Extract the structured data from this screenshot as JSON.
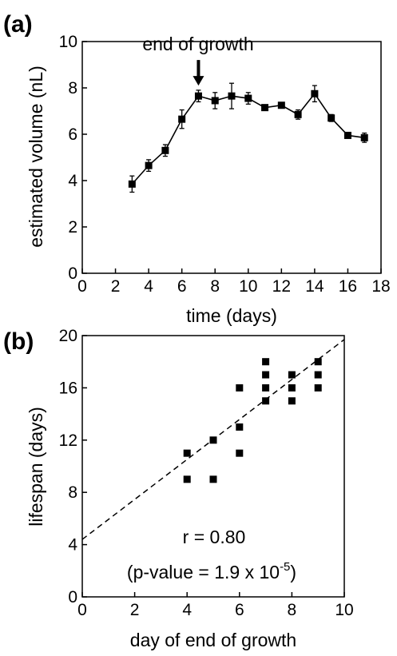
{
  "chart_data": [
    {
      "type": "line",
      "panel_label": "(a)",
      "xlabel": "time (days)",
      "ylabel": "estimated volume (nL)",
      "xlim": [
        0,
        18
      ],
      "ylim": [
        0,
        10
      ],
      "xticks": [
        "0",
        "2",
        "4",
        "6",
        "8",
        "10",
        "12",
        "14",
        "16",
        "18"
      ],
      "yticks": [
        "0",
        "2",
        "4",
        "6",
        "8",
        "10"
      ],
      "annotation": {
        "text": "end of growth",
        "x": 7
      },
      "points": [
        {
          "x": 3,
          "y": 3.85,
          "err": 0.35
        },
        {
          "x": 4,
          "y": 4.65,
          "err": 0.25
        },
        {
          "x": 5,
          "y": 5.3,
          "err": 0.25
        },
        {
          "x": 6,
          "y": 6.65,
          "err": 0.4
        },
        {
          "x": 7,
          "y": 7.65,
          "err": 0.25
        },
        {
          "x": 8,
          "y": 7.45,
          "err": 0.35
        },
        {
          "x": 9,
          "y": 7.65,
          "err": 0.55
        },
        {
          "x": 10,
          "y": 7.55,
          "err": 0.25
        },
        {
          "x": 11,
          "y": 7.15,
          "err": 0.1
        },
        {
          "x": 12,
          "y": 7.25,
          "err": 0.1
        },
        {
          "x": 13,
          "y": 6.85,
          "err": 0.2
        },
        {
          "x": 14,
          "y": 7.75,
          "err": 0.35
        },
        {
          "x": 15,
          "y": 6.7,
          "err": 0.15
        },
        {
          "x": 16,
          "y": 5.95,
          "err": 0.1
        },
        {
          "x": 17,
          "y": 5.85,
          "err": 0.2
        }
      ]
    },
    {
      "type": "scatter",
      "panel_label": "(b)",
      "xlabel": "day of end of growth",
      "ylabel": "lifespan (days)",
      "xlim": [
        0,
        10
      ],
      "ylim": [
        0,
        20
      ],
      "xticks": [
        "0",
        "2",
        "4",
        "6",
        "8",
        "10"
      ],
      "yticks": [
        "0",
        "4",
        "8",
        "12",
        "16",
        "20"
      ],
      "points": [
        {
          "x": 4,
          "y": 11
        },
        {
          "x": 4,
          "y": 9
        },
        {
          "x": 5,
          "y": 12
        },
        {
          "x": 5,
          "y": 9
        },
        {
          "x": 6,
          "y": 16
        },
        {
          "x": 6,
          "y": 13
        },
        {
          "x": 6,
          "y": 11
        },
        {
          "x": 7,
          "y": 18
        },
        {
          "x": 7,
          "y": 17
        },
        {
          "x": 7,
          "y": 16
        },
        {
          "x": 7,
          "y": 15
        },
        {
          "x": 8,
          "y": 17
        },
        {
          "x": 8,
          "y": 16
        },
        {
          "x": 8,
          "y": 15
        },
        {
          "x": 9,
          "y": 18
        },
        {
          "x": 9,
          "y": 17
        },
        {
          "x": 9,
          "y": 16
        }
      ],
      "fit_line": {
        "x0": 0,
        "y0": 4.4,
        "x1": 10,
        "y1": 19.7
      },
      "annotation_r": "r = 0.80",
      "annotation_p_prefix": "(p-value = 1.9 x 10",
      "annotation_p_exp": "-5",
      "annotation_p_suffix": ")"
    }
  ]
}
